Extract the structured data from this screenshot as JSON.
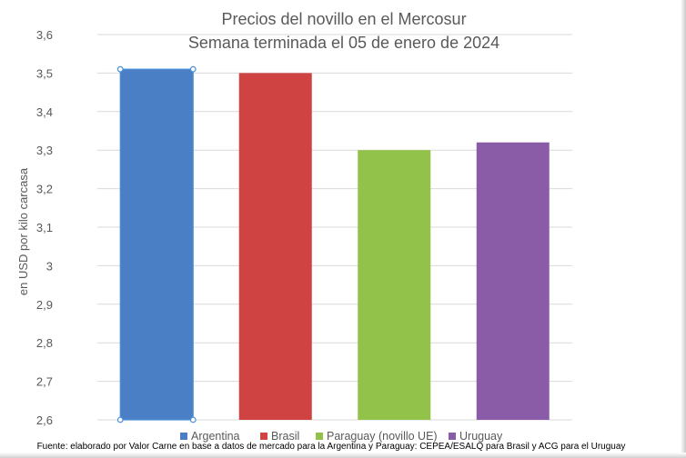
{
  "chart_data": {
    "type": "bar",
    "title": "Precios del novillo en el Mercosur",
    "subtitle": "Semana terminada el 05 de enero de 2024",
    "ylabel": "en USD por kilo carcasa",
    "categories": [
      "Argentina",
      "Brasil",
      "Paraguay (novillo UE)",
      "Uruguay"
    ],
    "values": [
      3.51,
      3.5,
      3.3,
      3.32
    ],
    "colors": [
      "#4a7ec5",
      "#cf4343",
      "#93c24a",
      "#8a5ba6"
    ],
    "ylim": [
      2.6,
      3.6
    ],
    "yticks": [
      "2,6",
      "2,7",
      "2,8",
      "2,9",
      "3",
      "3,1",
      "3,2",
      "3,3",
      "3,4",
      "3,5",
      "3,6"
    ],
    "ytick_values": [
      2.6,
      2.7,
      2.8,
      2.9,
      3.0,
      3.1,
      3.2,
      3.3,
      3.4,
      3.5,
      3.6
    ],
    "grid": true,
    "legend": "bottom",
    "selected_series_index": 0,
    "source": "Fuente: elaborado por Valor Carne en base a datos de mercado para la Argentina y Paraguay: CEPEA/ESALQ para Brasil y ACG para el Uruguay"
  }
}
